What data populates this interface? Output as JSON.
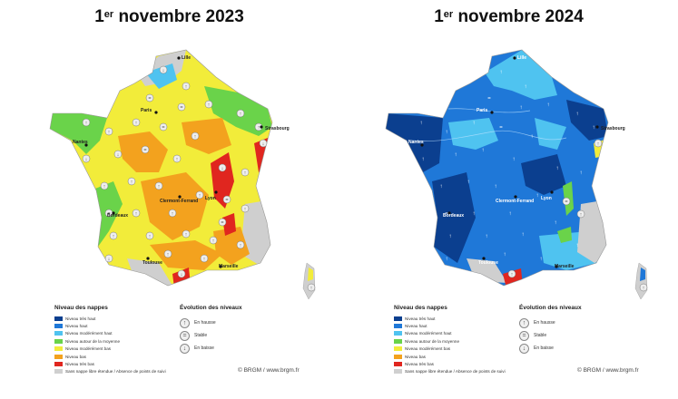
{
  "left": {
    "title_prefix": "1",
    "title_sup": "er",
    "title_rest": " novembre 2023"
  },
  "right": {
    "title_prefix": "1",
    "title_sup": "er",
    "title_rest": " novembre 2024"
  },
  "cities": {
    "lille": "Lille",
    "paris": "Paris",
    "strasbourg": "Strasbourg",
    "nantes": "Nantes",
    "clermont": "Clermont-Ferrand",
    "lyon": "Lyon",
    "bordeaux": "Bordeaux",
    "toulouse": "Toulouse",
    "marseille": "Marseille"
  },
  "legend": {
    "title": "Niveau des nappes",
    "items": [
      {
        "label": "Niveau très haut",
        "color": "#0b3f8f"
      },
      {
        "label": "Niveau haut",
        "color": "#1f78d8"
      },
      {
        "label": "Niveau modérément haut",
        "color": "#4fc3f0"
      },
      {
        "label": "Niveau autour de la moyenne",
        "color": "#6ad34a"
      },
      {
        "label": "Niveau modérément bas",
        "color": "#f2ec3a"
      },
      {
        "label": "Niveau bas",
        "color": "#f3a21e"
      },
      {
        "label": "Niveau très bas",
        "color": "#e0261f"
      },
      {
        "label": "Sans nappe libre étendue / Absence de points de suivi",
        "color": "#cfcfcf"
      }
    ]
  },
  "evolution": {
    "title": "Évolution des niveaux",
    "items": [
      {
        "label": "En hausse",
        "icon": "arrow-up-icon"
      },
      {
        "label": "Stable",
        "icon": "equals-icon"
      },
      {
        "label": "En baisse",
        "icon": "arrow-down-icon"
      }
    ]
  },
  "credit": "© BRGM / www.brgm.fr"
}
